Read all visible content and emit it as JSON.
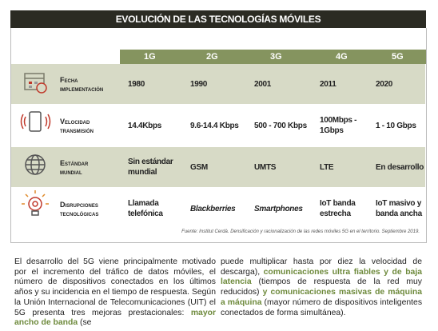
{
  "header": {
    "title": "EVOLUCIÓN DE LAS TECNOLOGÍAS MÓVILES"
  },
  "table": {
    "columns": [
      "1G",
      "2G",
      "3G",
      "4G",
      "5G"
    ],
    "rows": [
      {
        "label": "Fecha",
        "sublabel": "implementación",
        "cells": [
          "1980",
          "1990",
          "2001",
          "2011",
          "2020"
        ]
      },
      {
        "label": "Velocidad",
        "sublabel": "transmisión",
        "cells": [
          "14.4Kbps",
          "9.6-14.4 Kbps",
          "500 - 700 Kbps",
          "100Mbps - 1Gbps",
          "1 - 10 Gbps"
        ]
      },
      {
        "label": "Estándar",
        "sublabel": "mundial",
        "cells": [
          "Sin estándar mundial",
          "GSM",
          "UMTS",
          "LTE",
          "En desarrollo"
        ]
      },
      {
        "label": "Disrupciones",
        "sublabel": "tecnológicas",
        "cells": [
          "Llamada telefónica",
          "Blackberries",
          "Smartphones",
          "IoT banda estrecha",
          "IoT masivo y banda ancha"
        ]
      }
    ],
    "source": "Fuente: Institut Cerdà. Densificación y racionalización de las redes móviles 5G en el territorio. Septiembre 2019."
  },
  "body": {
    "columns": [
      [
        {
          "text": "El desarrollo del 5G viene principalmente motivado por el incremento del tráfico de datos móviles, el número de dispositivos conectados en los últimos años y su incidencia en el tiempo de respuesta. Según la Unión Internacional de Telecomunicaciones (UIT) el 5G presenta tres mejoras prestacionales: ",
          "bold": false
        },
        {
          "text": "mayor ancho de banda",
          "bold": true
        },
        {
          "text": " (se",
          "bold": false
        }
      ],
      [
        {
          "text": "puede multiplicar hasta por diez la velocidad de descarga), ",
          "bold": false
        },
        {
          "text": "comunicaciones ultra fiables y de baja latencia",
          "bold": true
        },
        {
          "text": " (tiempos de respuesta de la red muy reducidos) ",
          "bold": false
        },
        {
          "text": "y comunicaciones masivas de máquina a máquina",
          "bold": true
        },
        {
          "text": " (mayor número de dispositivos inteligentes conectados de forma simultánea).",
          "bold": false
        }
      ]
    ]
  }
}
